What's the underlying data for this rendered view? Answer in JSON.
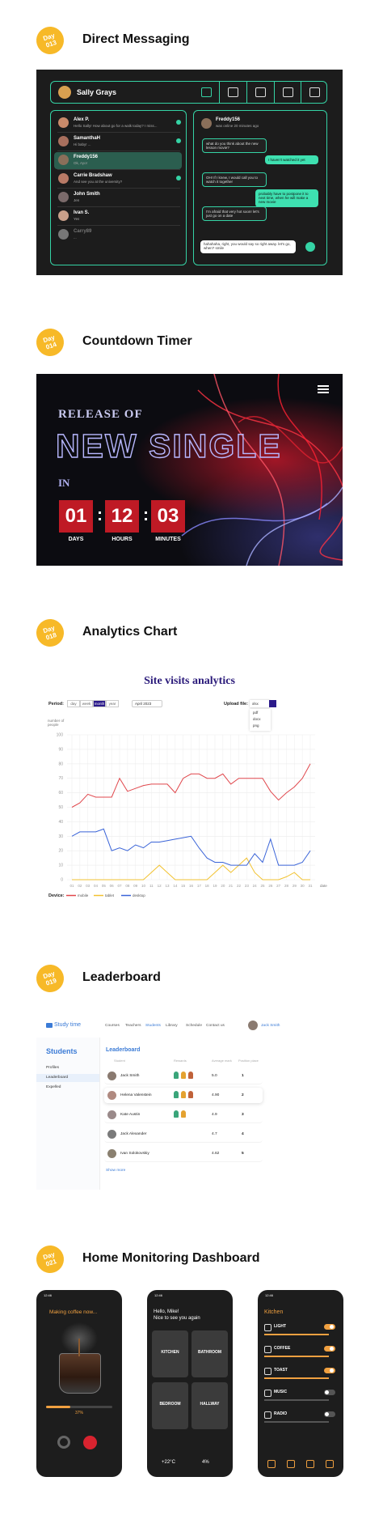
{
  "sections": [
    {
      "day": "Day",
      "num": "013",
      "title": "Direct Messaging"
    },
    {
      "day": "Day",
      "num": "014",
      "title": "Countdown Timer"
    },
    {
      "day": "Day",
      "num": "018",
      "title": "Analytics Chart"
    },
    {
      "day": "Day",
      "num": "019",
      "title": "Leaderboard"
    },
    {
      "day": "Day",
      "num": "021",
      "title": "Home Monitoring Dashboard"
    }
  ],
  "messaging": {
    "user": "Sally Grays",
    "selected": 2,
    "contacts": [
      {
        "name": "Alex P.",
        "msg": "Hello Sally! How about go for a walk today? I miss..."
      },
      {
        "name": "SamanthaH",
        "msg": "Hi baby! ..."
      },
      {
        "name": "Freddy156",
        "msg": "Ok, Ayo!"
      },
      {
        "name": "Carrie Bradshaw",
        "msg": "And see you at the university?"
      },
      {
        "name": "John Smith",
        "msg": "Jen"
      },
      {
        "name": "Ivan S.",
        "msg": "Yes"
      },
      {
        "name": "Carry89",
        "msg": "..."
      }
    ],
    "chat": {
      "name": "Freddy156",
      "status": "was online 20 minutes ago",
      "messages": [
        {
          "text": "what do you think about the new lesson movie?",
          "out": false
        },
        {
          "text": "I haven't watched it yet",
          "out": true
        },
        {
          "text": "OH! If I knew, I would call you to watch it together",
          "out": false
        },
        {
          "text": "probably have to postpone it to next time, when he will make a new movie",
          "out": true
        },
        {
          "text": "I'm afraid that very hot soon! let's just go on a date",
          "out": false
        }
      ],
      "input": "hahahaha, right, you would say so right away. let's go, when? smile"
    }
  },
  "countdown": {
    "pre": "RELEASE OF",
    "headline": "NEW SINGLE",
    "in": "IN",
    "units": [
      {
        "value": "01",
        "label": "DAYS"
      },
      {
        "value": "12",
        "label": "HOURS"
      },
      {
        "value": "03",
        "label": "MINUTES"
      }
    ]
  },
  "analytics": {
    "title": "Site visits analytics",
    "period_label": "Period:",
    "periods": [
      "day",
      "week",
      "month",
      "year"
    ],
    "selected_period": 2,
    "month": "April 2023",
    "upload_label": "Upload file:",
    "format": "xlsx",
    "formats": [
      "pdf",
      "docx",
      "png"
    ],
    "y_label": "number of people",
    "x_label": "date",
    "legend_title": "Device:",
    "grid": true,
    "ylim": [
      0,
      100
    ],
    "yticks": [
      0,
      10,
      20,
      30,
      40,
      50,
      60,
      70,
      80,
      90,
      100
    ],
    "categories": [
      "01",
      "02",
      "03",
      "04",
      "05",
      "06",
      "07",
      "08",
      "09",
      "10",
      "11",
      "12",
      "13",
      "14",
      "15",
      "16",
      "17",
      "18",
      "19",
      "20",
      "21",
      "22",
      "23",
      "24",
      "25",
      "26",
      "27",
      "28",
      "29",
      "30",
      "31"
    ],
    "series": [
      {
        "name": "mobile",
        "color": "#e0474c",
        "values": [
          50,
          53,
          59,
          57,
          57,
          57,
          70,
          61,
          63,
          65,
          66,
          66,
          66,
          60,
          70,
          73,
          73,
          70,
          70,
          73,
          66,
          70,
          70,
          70,
          70,
          61,
          55,
          60,
          64,
          70,
          80
        ]
      },
      {
        "name": "tablet",
        "color": "#f2c230",
        "values": [
          0,
          0,
          0,
          0,
          0,
          0,
          0,
          0,
          0,
          0,
          5,
          10,
          5,
          0,
          0,
          0,
          0,
          0,
          5,
          10,
          5,
          10,
          15,
          5,
          0,
          0,
          0,
          2,
          5,
          0,
          0
        ]
      },
      {
        "name": "desktop",
        "color": "#3a64d8",
        "values": [
          30,
          33,
          33,
          33,
          35,
          20,
          22,
          20,
          24,
          22,
          26,
          26,
          27,
          28,
          29,
          30,
          22,
          15,
          12,
          12,
          10,
          10,
          10,
          18,
          12,
          28,
          10,
          10,
          10,
          12,
          20
        ]
      }
    ]
  },
  "leaderboard": {
    "logo": "Study time",
    "nav": [
      "Courses",
      "Teachers",
      "Students",
      "Library",
      "Schedule",
      "Contact us"
    ],
    "active_nav": 2,
    "user": "Jack Smith",
    "side_title": "Students",
    "side": [
      "Profiles",
      "Leaderboard",
      "Expelled"
    ],
    "active_side": 1,
    "heading": "Leaderboard",
    "columns": [
      "Student",
      "Rewards",
      "Average mark",
      "Position place"
    ],
    "rows": [
      {
        "name": "Jack Smith",
        "rewards": 3,
        "mark": "5.0",
        "place": "1"
      },
      {
        "name": "Helena Valenstein",
        "rewards": 3,
        "mark": "4.90",
        "place": "2"
      },
      {
        "name": "Kate Austin",
        "rewards": 2,
        "mark": "4.9",
        "place": "3"
      },
      {
        "name": "Jack Alexander",
        "rewards": 0,
        "mark": "4.7",
        "place": "4"
      },
      {
        "name": "Ivan Solokovskiy",
        "rewards": 0,
        "mark": "4.62",
        "place": "5"
      }
    ],
    "more": "Show more"
  },
  "home": {
    "time": "12:46",
    "coffee": {
      "title": "Making coffee now...",
      "progress": 37,
      "progress_label": "37%"
    },
    "rooms": {
      "greeting": "Hello, Mike!",
      "sub": "Nice to see you again",
      "tiles": [
        "KITCHEN",
        "BATHROOM",
        "BEDROOM",
        "HALLWAY"
      ],
      "temp": "+22°C",
      "humidity": "4%"
    },
    "kitchen": {
      "title": "Kitchen",
      "devices": [
        {
          "name": "LIGHT",
          "on": true
        },
        {
          "name": "COFFEE",
          "on": true
        },
        {
          "name": "TOAST",
          "on": true
        },
        {
          "name": "MUSIC",
          "on": false
        },
        {
          "name": "RADIO",
          "on": false
        }
      ]
    }
  }
}
